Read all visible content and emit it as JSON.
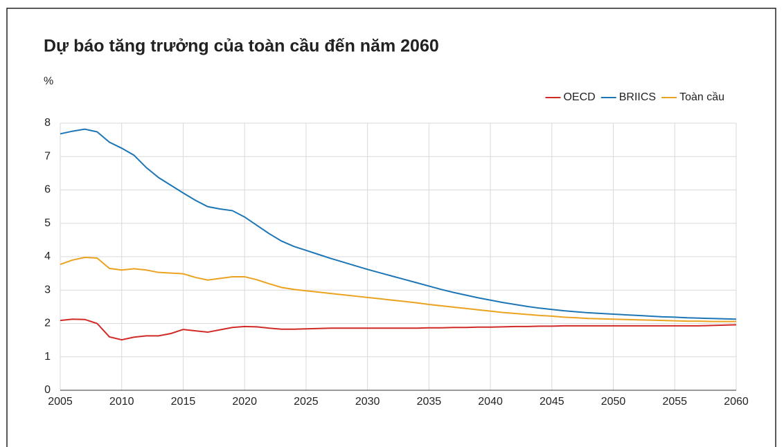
{
  "chart_data": {
    "type": "line",
    "title": "Dự báo tăng trưởng của toàn cầu đến năm 2060",
    "y_label": "%",
    "x": [
      2005,
      2006,
      2007,
      2008,
      2009,
      2010,
      2011,
      2012,
      2013,
      2014,
      2015,
      2016,
      2017,
      2018,
      2019,
      2020,
      2021,
      2022,
      2023,
      2024,
      2025,
      2026,
      2027,
      2028,
      2029,
      2030,
      2031,
      2032,
      2033,
      2034,
      2035,
      2036,
      2037,
      2038,
      2039,
      2040,
      2041,
      2042,
      2043,
      2044,
      2045,
      2046,
      2047,
      2048,
      2049,
      2050,
      2051,
      2052,
      2053,
      2054,
      2055,
      2056,
      2057,
      2058,
      2059,
      2060
    ],
    "series": [
      {
        "name": "OECD",
        "color": "#d12a26",
        "values": [
          2.09,
          2.13,
          2.12,
          2.0,
          1.6,
          1.51,
          1.59,
          1.63,
          1.63,
          1.7,
          1.82,
          1.78,
          1.74,
          1.81,
          1.88,
          1.91,
          1.9,
          1.86,
          1.83,
          1.83,
          1.84,
          1.85,
          1.86,
          1.86,
          1.86,
          1.86,
          1.86,
          1.86,
          1.86,
          1.86,
          1.87,
          1.87,
          1.88,
          1.88,
          1.89,
          1.89,
          1.9,
          1.91,
          1.91,
          1.92,
          1.92,
          1.93,
          1.93,
          1.93,
          1.93,
          1.93,
          1.93,
          1.93,
          1.93,
          1.93,
          1.93,
          1.93,
          1.93,
          1.94,
          1.95,
          1.96
        ]
      },
      {
        "name": "BRIICS",
        "color": "#1c75b5",
        "values": [
          7.68,
          7.76,
          7.82,
          7.74,
          7.43,
          7.25,
          7.04,
          6.67,
          6.37,
          6.14,
          5.91,
          5.69,
          5.5,
          5.43,
          5.38,
          5.19,
          4.94,
          4.69,
          4.47,
          4.31,
          4.19,
          4.07,
          3.95,
          3.84,
          3.73,
          3.62,
          3.52,
          3.42,
          3.32,
          3.22,
          3.12,
          3.02,
          2.93,
          2.85,
          2.77,
          2.7,
          2.63,
          2.57,
          2.51,
          2.46,
          2.42,
          2.38,
          2.35,
          2.32,
          2.3,
          2.28,
          2.26,
          2.24,
          2.22,
          2.2,
          2.19,
          2.17,
          2.16,
          2.15,
          2.14,
          2.13
        ]
      },
      {
        "name": "Toàn cầu",
        "color": "#eba21f",
        "values": [
          3.77,
          3.9,
          3.98,
          3.96,
          3.65,
          3.6,
          3.64,
          3.6,
          3.53,
          3.51,
          3.49,
          3.38,
          3.3,
          3.35,
          3.4,
          3.4,
          3.31,
          3.19,
          3.08,
          3.02,
          2.98,
          2.94,
          2.9,
          2.86,
          2.82,
          2.78,
          2.74,
          2.7,
          2.66,
          2.62,
          2.57,
          2.53,
          2.49,
          2.45,
          2.41,
          2.37,
          2.33,
          2.3,
          2.27,
          2.24,
          2.22,
          2.19,
          2.17,
          2.15,
          2.14,
          2.13,
          2.12,
          2.11,
          2.1,
          2.09,
          2.08,
          2.07,
          2.07,
          2.06,
          2.06,
          2.06
        ]
      }
    ],
    "xlim": [
      2005,
      2060
    ],
    "xticks": [
      2005,
      2010,
      2015,
      2020,
      2025,
      2030,
      2035,
      2040,
      2045,
      2050,
      2055,
      2060
    ],
    "ylim": [
      0,
      8
    ],
    "yticks": [
      0,
      1,
      2,
      3,
      4,
      5,
      6,
      7,
      8
    ],
    "grid": true,
    "legend": "top-right"
  }
}
